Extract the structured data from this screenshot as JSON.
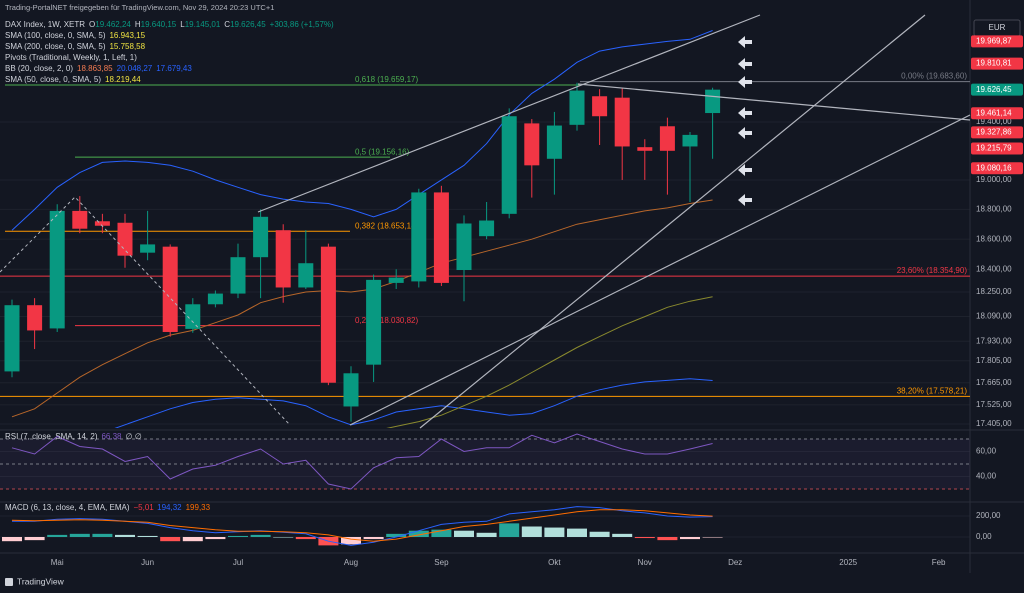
{
  "header": {
    "shared_by": "Trading-PortalNET freigegeben für TradingView.com, Nov 29, 2024 20:23 UTC+1",
    "currency": "EUR",
    "brand": "TradingView"
  },
  "legend": [
    [
      {
        "text": "DAX Index, 1W, XETR",
        "color": "#d1d4dc"
      },
      {
        "text": "O",
        "color": "#d1d4dc"
      },
      {
        "text": "19.462,24",
        "color": "#089981"
      },
      {
        "text": "H",
        "color": "#d1d4dc"
      },
      {
        "text": "19.640,15",
        "color": "#089981"
      },
      {
        "text": "L",
        "color": "#d1d4dc"
      },
      {
        "text": "19.145,01",
        "color": "#089981"
      },
      {
        "text": "C",
        "color": "#d1d4dc"
      },
      {
        "text": "19.626,45",
        "color": "#089981"
      },
      {
        "text": "+303,86 (+1,57%)",
        "color": "#089981"
      }
    ],
    [
      {
        "text": "SMA (100, close, 0, SMA, 5)",
        "color": "#d1d4dc"
      },
      {
        "text": "16.943,15",
        "color": "#f0e442"
      }
    ],
    [
      {
        "text": "SMA (200, close, 0, SMA, 5)",
        "color": "#d1d4dc"
      },
      {
        "text": "15.758,58",
        "color": "#f0e442"
      }
    ],
    [
      {
        "text": "Pivots (Traditional, Weekly, 1, Left, 1)",
        "color": "#d1d4dc"
      }
    ],
    [
      {
        "text": "BB (20, close, 2, 0)",
        "color": "#d1d4dc"
      },
      {
        "text": "18.863,85",
        "color": "#f57c52"
      },
      {
        "text": "20.048,27",
        "color": "#2962ff"
      },
      {
        "text": "17.679,43",
        "color": "#2962ff"
      }
    ],
    [
      {
        "text": "SMA (50, close, 0, SMA, 5)",
        "color": "#d1d4dc"
      },
      {
        "text": "18.219,44",
        "color": "#f0e442"
      }
    ]
  ],
  "chart_data": [
    {
      "type": "candlestick",
      "categories": [
        null,
        null,
        "Mai",
        null,
        null,
        null,
        "Jun",
        null,
        null,
        null,
        "Jul",
        null,
        null,
        null,
        null,
        "Aug",
        null,
        null,
        null,
        "Sep",
        null,
        null,
        null,
        null,
        "Okt",
        null,
        null,
        null,
        "Nov",
        null,
        null,
        null,
        "Dez",
        null,
        null,
        null,
        null,
        "2025",
        null,
        null,
        null,
        "Feb",
        null
      ],
      "open": [
        17737,
        18164,
        18013,
        18790,
        18720,
        18710,
        18510,
        18550,
        18010,
        18170,
        18240,
        18480,
        18660,
        18280,
        18550,
        17515,
        17780,
        18310,
        18320,
        18915,
        18395,
        18620,
        18770,
        19390,
        19145,
        19380,
        19580,
        19570,
        19225,
        19370,
        19230,
        19462.24,
        null,
        null,
        null,
        null,
        null,
        null,
        null,
        null,
        null,
        null,
        null
      ],
      "high": [
        18200,
        18210,
        18835,
        18890,
        18770,
        18770,
        18790,
        18565,
        18210,
        18260,
        18570,
        18800,
        18700,
        18660,
        18570,
        17770,
        18365,
        18400,
        18940,
        18960,
        18760,
        18850,
        19495,
        19420,
        19470,
        19675,
        19630,
        19640,
        19280,
        19430,
        19330,
        19640.15,
        null,
        null,
        null,
        null,
        null,
        null,
        null,
        null,
        null,
        null,
        null
      ],
      "low": [
        17700,
        17880,
        17990,
        18640,
        18640,
        18410,
        18460,
        17960,
        17985,
        18150,
        18210,
        18210,
        18180,
        18270,
        17650,
        17420,
        17670,
        18270,
        18280,
        18290,
        18190,
        18600,
        18740,
        18880,
        18900,
        19340,
        19240,
        19000,
        19000,
        18900,
        18850,
        19145.01,
        null,
        null,
        null,
        null,
        null,
        null,
        null,
        null,
        null,
        null,
        null
      ],
      "close": [
        18164,
        18000,
        18790,
        18670,
        18690,
        18490,
        18565,
        17990,
        18170,
        18240,
        18480,
        18750,
        18280,
        18440,
        17665,
        17725,
        18330,
        18345,
        18915,
        18310,
        18705,
        18725,
        19440,
        19100,
        19375,
        19620,
        19440,
        19230,
        19200,
        19200,
        19310,
        19626.45,
        null,
        null,
        null,
        null,
        null,
        null,
        null,
        null,
        null,
        null,
        null
      ],
      "up_color": "#089981",
      "down_color": "#f23645",
      "log_scale": true,
      "ylim": [
        17380,
        20160
      ],
      "yticks": [
        {
          "value": 19400,
          "label": "19.400,00"
        },
        {
          "value": 19000,
          "label": "19.000,00"
        },
        {
          "value": 18800,
          "label": "18.800,00"
        },
        {
          "value": 18600,
          "label": "18.600,00"
        },
        {
          "value": 18400,
          "label": "18.400,00"
        },
        {
          "value": 18250,
          "label": "18.250,00"
        },
        {
          "value": 18090,
          "label": "18.090,00"
        },
        {
          "value": 17930,
          "label": "17.930,00"
        },
        {
          "value": 17805,
          "label": "17.805,00"
        },
        {
          "value": 17665,
          "label": "17.665,00"
        },
        {
          "value": 17525,
          "label": "17.525,00"
        },
        {
          "value": 17405,
          "label": "17.405,00"
        }
      ],
      "overlays": [
        {
          "color": "#2962ff",
          "values": [
            18660,
            18800,
            18950,
            19050,
            19120,
            19130,
            19120,
            19100,
            19060,
            19000,
            18950,
            18900,
            18870,
            18850,
            18840,
            18800,
            18750,
            18800,
            18900,
            19000,
            19100,
            19250,
            19450,
            19600,
            19700,
            19820,
            19900,
            19930,
            19950,
            19970,
            19985,
            20048.27,
            null,
            null,
            null,
            null,
            null,
            null,
            null,
            null,
            null,
            null,
            null
          ]
        },
        {
          "color": "#2962ff",
          "values": [
            17200,
            17200,
            17250,
            17300,
            17350,
            17400,
            17450,
            17500,
            17540,
            17560,
            17570,
            17560,
            17550,
            17520,
            17450,
            17400,
            17430,
            17480,
            17500,
            17520,
            17500,
            17480,
            17460,
            17470,
            17520,
            17580,
            17620,
            17650,
            17670,
            17680,
            17690,
            17679.43,
            null,
            null,
            null,
            null,
            null,
            null,
            null,
            null,
            null,
            null,
            null
          ]
        },
        {
          "color": "#b7662a",
          "values": [
            17450,
            17500,
            17600,
            17700,
            17780,
            17850,
            17920,
            17970,
            18000,
            18050,
            18100,
            18180,
            18220,
            18250,
            18260,
            18250,
            18270,
            18320,
            18380,
            18440,
            18480,
            18520,
            18560,
            18600,
            18650,
            18700,
            18730,
            18760,
            18790,
            18810,
            18840,
            18863.85,
            null,
            null,
            null,
            null,
            null,
            null,
            null,
            null,
            null,
            null,
            null
          ]
        },
        {
          "color": "#8a8a2e",
          "values": [
            16500,
            16560,
            16620,
            16680,
            16740,
            16800,
            16860,
            16920,
            16980,
            17040,
            17100,
            17160,
            17210,
            17260,
            17300,
            17330,
            17360,
            17390,
            17420,
            17460,
            17520,
            17580,
            17650,
            17730,
            17810,
            17890,
            17960,
            18030,
            18090,
            18150,
            18190,
            18219.44,
            null,
            null,
            null,
            null,
            null,
            null,
            null,
            null,
            null,
            null,
            null
          ]
        }
      ],
      "levels": [
        {
          "value": 19659.17,
          "label": "0,618 (19.659,17)",
          "color": "#4caf50"
        },
        {
          "value": 19156.16,
          "label": "0,5 (19.156,16)",
          "color": "#4caf50"
        },
        {
          "value": 18653.18,
          "label": "0,382 (18.653,18)",
          "color": "#ff9800"
        },
        {
          "value": 18030.82,
          "label": "0,236 (18.030,82)",
          "color": "#f23645"
        },
        {
          "value": 19683.6,
          "label": "0,00% (19.683,60)",
          "color": "#787b86"
        },
        {
          "value": 18354.9,
          "label": "23,60% (18.354,90)",
          "color": "#f23645"
        },
        {
          "value": 17578.21,
          "label": "38,20% (17.578,21)",
          "color": "#ff9800"
        }
      ],
      "price_tags": [
        {
          "value": 19969.87,
          "label": "19.969,87",
          "color": "#f23645"
        },
        {
          "value": 19810.81,
          "label": "19.810,81",
          "color": "#f23645"
        },
        {
          "value": 19626.45,
          "label": "19.626,45",
          "color": "#089981"
        },
        {
          "value": 19461.14,
          "label": "19.461,14",
          "color": "#f23645"
        },
        {
          "value": 19327.86,
          "label": "19.327,86",
          "color": "#f23645"
        },
        {
          "value": 19215.79,
          "label": "19.215,79",
          "color": "#f23645"
        },
        {
          "value": 19080.16,
          "label": "19.080,16",
          "color": "#f23645"
        }
      ]
    },
    {
      "type": "line",
      "title": "RSI (7, close, SMA, 14, 2)",
      "value_text": "66,38",
      "extra_text": "∅ ∅",
      "color": "#7e57c2",
      "values": [
        63,
        58,
        72,
        64,
        62,
        52,
        56,
        38,
        46,
        49,
        56,
        62,
        50,
        53,
        34,
        30,
        47,
        55,
        56,
        70,
        60,
        63,
        63,
        73,
        67,
        74,
        68,
        62,
        58,
        58,
        62,
        66.38
      ],
      "levels": [
        70,
        50,
        30
      ],
      "ylim": [
        21.2,
        75.6
      ],
      "yticks": [
        {
          "value": 60,
          "label": "60,00"
        },
        {
          "value": 40,
          "label": "40,00"
        }
      ]
    },
    {
      "type": "macd",
      "title": "MACD (6, 13, close, 4, EMA, EMA)",
      "legend_values": [
        {
          "text": "−5,01",
          "color": "#f23645"
        },
        {
          "text": "194,32",
          "color": "#2962ff"
        },
        {
          "text": "199,33",
          "color": "#ff6d00"
        }
      ],
      "histogram": [
        -40,
        -30,
        20,
        30,
        30,
        20,
        10,
        -40,
        -40,
        -20,
        10,
        20,
        0,
        -20,
        -80,
        -70,
        -20,
        30,
        60,
        70,
        60,
        40,
        130,
        100,
        90,
        80,
        50,
        30,
        -10,
        -30,
        -20,
        -5.01
      ],
      "series": [
        {
          "color": "#2962ff",
          "values": [
            150,
            150,
            170,
            175,
            170,
            150,
            130,
            90,
            60,
            40,
            50,
            60,
            45,
            30,
            -40,
            -80,
            -50,
            0,
            60,
            120,
            140,
            150,
            220,
            240,
            260,
            290,
            280,
            250,
            230,
            200,
            190,
            194.32
          ]
        },
        {
          "color": "#ff6d00",
          "values": [
            160,
            155,
            160,
            165,
            160,
            150,
            140,
            110,
            90,
            70,
            55,
            55,
            50,
            40,
            20,
            -20,
            -40,
            -20,
            20,
            60,
            100,
            120,
            150,
            180,
            210,
            240,
            260,
            260,
            250,
            230,
            210,
            199.33
          ]
        }
      ],
      "ylim": [
        -124,
        305
      ],
      "yticks": [
        {
          "value": 200,
          "label": "200,00"
        },
        {
          "value": 0,
          "label": "0,00"
        }
      ]
    }
  ]
}
